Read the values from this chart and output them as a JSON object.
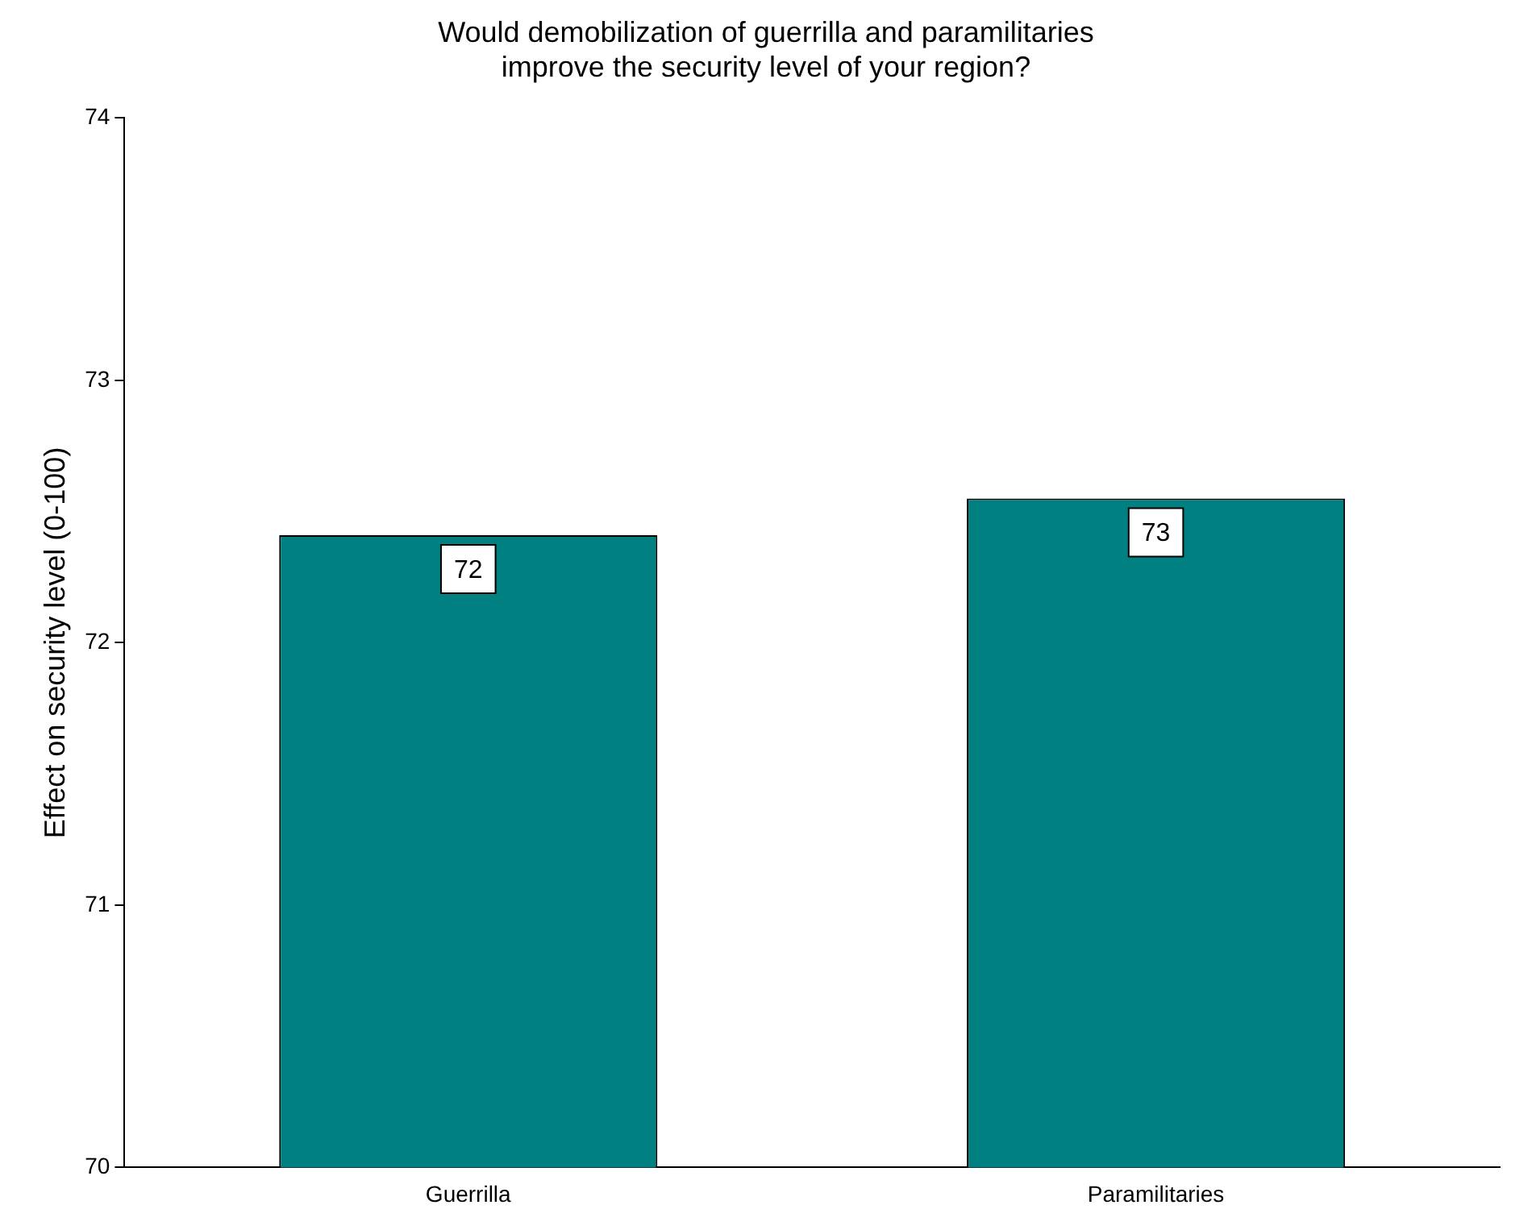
{
  "chart_data": {
    "type": "bar",
    "title": [
      "Would demobilization of guerrilla and paramilitaries",
      "improve the security level of your region?"
    ],
    "ylabel": "Effect on security level (0-100)",
    "categories": [
      "Guerrilla",
      "Paramilitaries"
    ],
    "values": [
      72.41,
      72.55
    ],
    "value_labels": [
      "72",
      "73"
    ],
    "color": "#008080",
    "ylim": [
      70,
      74
    ],
    "yticks": [
      70,
      71,
      72,
      73,
      74
    ],
    "grid": false,
    "legend": false
  }
}
